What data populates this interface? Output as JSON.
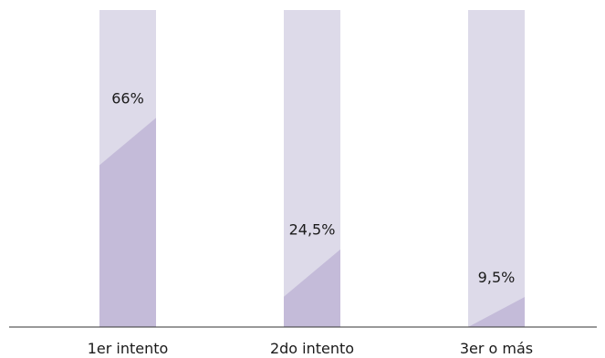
{
  "chart_data": {
    "type": "bar",
    "categories": [
      "1er intento",
      "2do intento",
      "3er o más"
    ],
    "values": [
      66,
      24.5,
      9.5
    ],
    "value_labels": [
      "66%",
      "24,5%",
      "9,5%"
    ],
    "ylim": [
      0,
      100
    ],
    "grid": false,
    "legend": "none",
    "colors": {
      "track": "#dddae9",
      "fill": "#c4bbd9",
      "axis": "#333333",
      "text": "#1a1a1a"
    }
  }
}
